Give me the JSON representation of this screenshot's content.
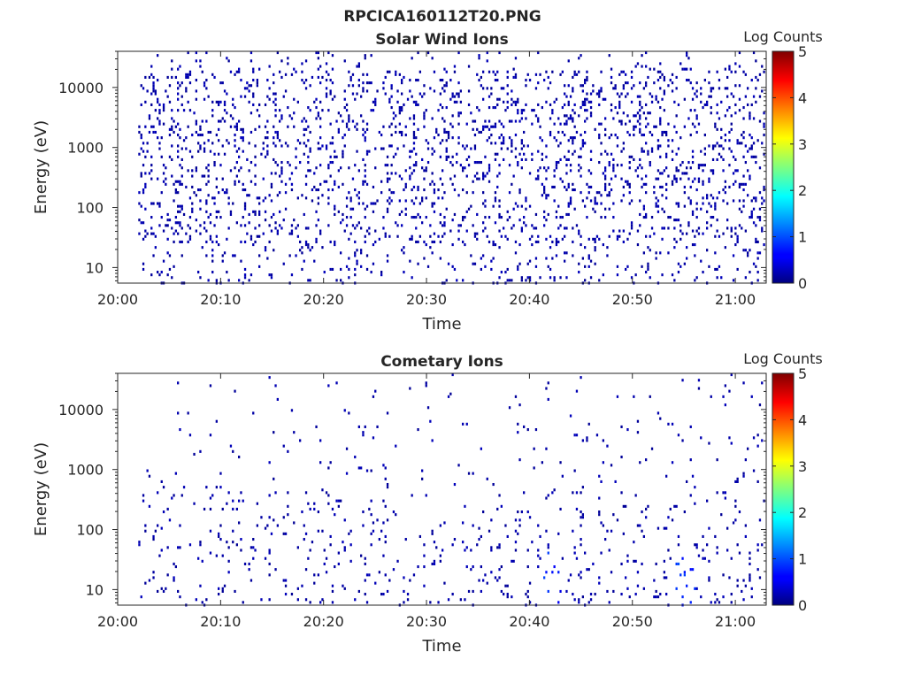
{
  "figure": {
    "title": "RPCICA160112T20.PNG"
  },
  "chart_data": [
    {
      "type": "heatmap",
      "title": "Solar Wind Ions",
      "xlabel": "Time",
      "ylabel": "Energy (eV)",
      "x_ticks": [
        "20:00",
        "20:10",
        "20:20",
        "20:30",
        "20:40",
        "20:50",
        "21:00"
      ],
      "x_range": [
        "20:00",
        "21:03"
      ],
      "y_scale": "log",
      "y_ticks": [
        "10",
        "100",
        "1000",
        "10000"
      ],
      "y_range": [
        5.5,
        40000
      ],
      "grid": false,
      "colorbar": {
        "label": "Log Counts",
        "ticks": [
          "0",
          "1",
          "2",
          "3",
          "4",
          "5"
        ],
        "range": [
          0,
          5
        ],
        "colormap": "jet"
      },
      "data_extent": {
        "time_start": "20:02",
        "time_end": "21:03"
      },
      "counts_description": "sparse counts mostly log ~0-0.5 spread across 10-20000 eV"
    },
    {
      "type": "heatmap",
      "title": "Cometary Ions",
      "xlabel": "Time",
      "ylabel": "Energy (eV)",
      "x_ticks": [
        "20:00",
        "20:10",
        "20:20",
        "20:30",
        "20:40",
        "20:50",
        "21:00"
      ],
      "x_range": [
        "20:00",
        "21:03"
      ],
      "y_scale": "log",
      "y_ticks": [
        "10",
        "100",
        "1000",
        "10000"
      ],
      "y_range": [
        5.5,
        40000
      ],
      "grid": false,
      "colorbar": {
        "label": "Log Counts",
        "ticks": [
          "0",
          "1",
          "2",
          "3",
          "4",
          "5"
        ],
        "range": [
          0,
          5
        ],
        "colormap": "jet"
      },
      "data_extent": {
        "time_start": "20:02",
        "time_end": "21:03"
      },
      "counts_description": "sparser counts, peaks near log 1 at low energies around 20:42 and 20:55"
    }
  ]
}
